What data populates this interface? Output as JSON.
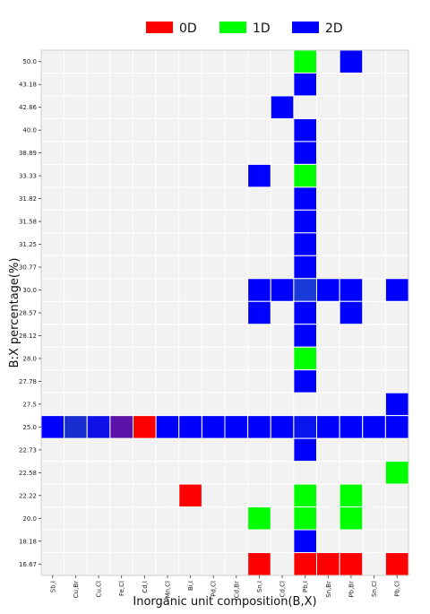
{
  "chart_data": {
    "type": "heatmap",
    "xlabel": "Inorganic unit composition(B,X)",
    "ylabel": "B:X percentage(%)",
    "x_categories": [
      "Sb,I",
      "Cu,Br",
      "Cu,Cl",
      "Fe,Cl",
      "Cd,I",
      "Mn,Cl",
      "Bi,I",
      "Pd,Cl",
      "Cd,Br",
      "Sn,I",
      "Cd,Cl",
      "Pb,I",
      "Sn,Br",
      "Pb,Br",
      "Sn,Cl",
      "Pb,Cl"
    ],
    "y_categories": [
      "50.0",
      "43.18",
      "42.86",
      "40.0",
      "38.89",
      "33.33",
      "31.82",
      "31.58",
      "31.25",
      "30.77",
      "30.0",
      "28.57",
      "28.12",
      "28.0",
      "27.78",
      "27.5",
      "25.0",
      "22.73",
      "22.58",
      "22.22",
      "20.0",
      "18.18",
      "16.67"
    ],
    "legend": {
      "position": "top-right",
      "entries": [
        {
          "name": "0D",
          "color": "#ff0000"
        },
        {
          "name": "1D",
          "color": "#00ff00"
        },
        {
          "name": "2D",
          "color": "#0000ff"
        }
      ]
    },
    "background_color": "#f2f2f2",
    "cells": [
      {
        "x": "Pb,I",
        "y": "50.0",
        "color": "#00ff00"
      },
      {
        "x": "Pb,Br",
        "y": "50.0",
        "color": "#0000ff"
      },
      {
        "x": "Pb,I",
        "y": "43.18",
        "color": "#0000ff"
      },
      {
        "x": "Cd,Cl",
        "y": "42.86",
        "color": "#0000ff"
      },
      {
        "x": "Pb,I",
        "y": "40.0",
        "color": "#0000ff"
      },
      {
        "x": "Pb,I",
        "y": "38.89",
        "color": "#0000ff"
      },
      {
        "x": "Sn,I",
        "y": "33.33",
        "color": "#0000ff"
      },
      {
        "x": "Pb,I",
        "y": "33.33",
        "color": "#00ff00"
      },
      {
        "x": "Pb,I",
        "y": "31.82",
        "color": "#0000ff"
      },
      {
        "x": "Pb,I",
        "y": "31.58",
        "color": "#0000ff"
      },
      {
        "x": "Pb,I",
        "y": "31.25",
        "color": "#0000ff"
      },
      {
        "x": "Pb,I",
        "y": "30.77",
        "color": "#0000ff"
      },
      {
        "x": "Sn,I",
        "y": "30.0",
        "color": "#0000ff"
      },
      {
        "x": "Cd,Cl",
        "y": "30.0",
        "color": "#0000ff"
      },
      {
        "x": "Pb,I",
        "y": "30.0",
        "color": "#1a3ad8"
      },
      {
        "x": "Sn,Br",
        "y": "30.0",
        "color": "#0000ff"
      },
      {
        "x": "Pb,Br",
        "y": "30.0",
        "color": "#0000ff"
      },
      {
        "x": "Pb,Cl",
        "y": "30.0",
        "color": "#0000ff"
      },
      {
        "x": "Sn,I",
        "y": "28.57",
        "color": "#0000ff"
      },
      {
        "x": "Pb,I",
        "y": "28.57",
        "color": "#0000ff"
      },
      {
        "x": "Pb,Br",
        "y": "28.57",
        "color": "#0000ff"
      },
      {
        "x": "Pb,I",
        "y": "28.12",
        "color": "#0000ff"
      },
      {
        "x": "Pb,I",
        "y": "28.0",
        "color": "#00ff00"
      },
      {
        "x": "Pb,I",
        "y": "27.78",
        "color": "#0000ff"
      },
      {
        "x": "Pb,Cl",
        "y": "27.5",
        "color": "#0000ff"
      },
      {
        "x": "Sb,I",
        "y": "25.0",
        "color": "#0000ff"
      },
      {
        "x": "Cu,Br",
        "y": "25.0",
        "color": "#1a2dd0"
      },
      {
        "x": "Cu,Cl",
        "y": "25.0",
        "color": "#0f12e8"
      },
      {
        "x": "Fe,Cl",
        "y": "25.0",
        "color": "#5a12a8"
      },
      {
        "x": "Cd,I",
        "y": "25.0",
        "color": "#ff0000"
      },
      {
        "x": "Mn,Cl",
        "y": "25.0",
        "color": "#0000ff"
      },
      {
        "x": "Bi,I",
        "y": "25.0",
        "color": "#0000ff"
      },
      {
        "x": "Pd,Cl",
        "y": "25.0",
        "color": "#0000ff"
      },
      {
        "x": "Cd,Br",
        "y": "25.0",
        "color": "#0000ff"
      },
      {
        "x": "Sn,I",
        "y": "25.0",
        "color": "#0000ff"
      },
      {
        "x": "Cd,Cl",
        "y": "25.0",
        "color": "#0000ff"
      },
      {
        "x": "Pb,I",
        "y": "25.0",
        "color": "#0a14ee"
      },
      {
        "x": "Sn,Br",
        "y": "25.0",
        "color": "#0000ff"
      },
      {
        "x": "Pb,Br",
        "y": "25.0",
        "color": "#0000ff"
      },
      {
        "x": "Sn,Cl",
        "y": "25.0",
        "color": "#0000ff"
      },
      {
        "x": "Pb,Cl",
        "y": "25.0",
        "color": "#0000ff"
      },
      {
        "x": "Pb,I",
        "y": "22.73",
        "color": "#0000ff"
      },
      {
        "x": "Pb,Cl",
        "y": "22.58",
        "color": "#00ff00"
      },
      {
        "x": "Bi,I",
        "y": "22.22",
        "color": "#ff0000"
      },
      {
        "x": "Pb,I",
        "y": "22.22",
        "color": "#00ff00"
      },
      {
        "x": "Pb,Br",
        "y": "22.22",
        "color": "#00ff00"
      },
      {
        "x": "Sn,I",
        "y": "20.0",
        "color": "#00ff00"
      },
      {
        "x": "Pb,I",
        "y": "20.0",
        "color": "#00ff00"
      },
      {
        "x": "Pb,Br",
        "y": "20.0",
        "color": "#00ff00"
      },
      {
        "x": "Pb,I",
        "y": "18.18",
        "color": "#0000ff"
      },
      {
        "x": "Sn,I",
        "y": "16.67",
        "color": "#ff0000"
      },
      {
        "x": "Pb,I",
        "y": "16.67",
        "color": "#ff0000"
      },
      {
        "x": "Sn,Br",
        "y": "16.67",
        "color": "#ff0000"
      },
      {
        "x": "Pb,Br",
        "y": "16.67",
        "color": "#ff0000"
      },
      {
        "x": "Pb,Cl",
        "y": "16.67",
        "color": "#ff0000"
      }
    ]
  }
}
